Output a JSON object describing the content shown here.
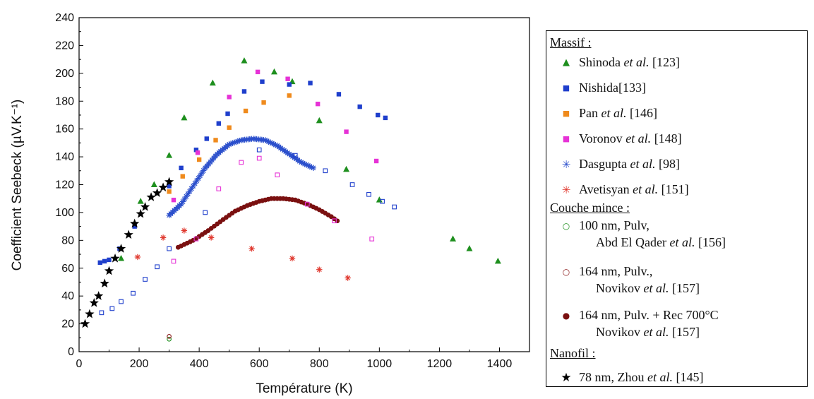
{
  "chart_data": {
    "type": "scatter",
    "xlabel": "Température (K)",
    "ylabel": "Coefficient Seebeck (µV.K⁻¹)",
    "xlim": [
      0,
      1500
    ],
    "ylim": [
      0,
      240
    ],
    "xticks": [
      0,
      200,
      400,
      600,
      800,
      1000,
      1200,
      1400
    ],
    "yticks": [
      0,
      20,
      40,
      60,
      80,
      100,
      120,
      140,
      160,
      180,
      200,
      220,
      240
    ],
    "grid": false,
    "legend_position": "right",
    "series": [
      {
        "name": "Shinoda et al. [123]",
        "marker": "triangle",
        "color": "#1e8f1e",
        "x": [
          140,
          205,
          250,
          300,
          350,
          445,
          550,
          650,
          710,
          800,
          890,
          1000,
          1245,
          1300,
          1395
        ],
        "y": [
          67,
          108,
          120,
          141,
          168,
          193,
          209,
          201,
          194,
          166,
          131,
          109,
          81,
          74,
          65
        ]
      },
      {
        "name": "Nishida[133]",
        "marker": "square",
        "color": "#1f3fcc",
        "x": [
          70,
          85,
          100,
          135,
          185,
          300,
          340,
          390,
          425,
          465,
          495,
          550,
          610,
          700,
          770,
          865,
          935,
          995,
          1020
        ],
        "y": [
          64,
          65,
          66,
          74,
          90,
          119,
          132,
          145,
          153,
          164,
          171,
          187,
          194,
          192,
          193,
          185,
          176,
          170,
          168
        ]
      },
      {
        "name": "Pan et al. [146]",
        "marker": "square",
        "color": "#ef8a1c",
        "x": [
          300,
          345,
          400,
          455,
          500,
          555,
          615,
          700
        ],
        "y": [
          115,
          126,
          138,
          152,
          161,
          173,
          179,
          184
        ]
      },
      {
        "name": "Voronov et al. [148]",
        "marker": "square",
        "color": "#e632d6",
        "x": [
          315,
          395,
          500,
          595,
          695,
          795,
          890,
          990
        ],
        "y": [
          109,
          143,
          183,
          201,
          196,
          178,
          158,
          137
        ]
      },
      {
        "name": "Dasgupta et al. [98]",
        "marker": "asterisk",
        "color": "#2b4fcc",
        "curve": true,
        "x": [
          300,
          340,
          380,
          420,
          460,
          500,
          540,
          580,
          620,
          660,
          700,
          740,
          780
        ],
        "y": [
          98,
          106,
          119,
          132,
          142,
          149,
          152,
          153,
          152,
          148,
          142,
          136,
          132
        ]
      },
      {
        "name": "Avetisyan et al. [151]",
        "marker": "asterisk",
        "color": "#e0382e",
        "x": [
          195,
          280,
          350,
          440,
          575,
          710,
          800,
          895
        ],
        "y": [
          68,
          82,
          87,
          82,
          74,
          67,
          59,
          53
        ]
      },
      {
        "name": "100 nm, Pulv, Abd El Qader et al. [156]",
        "marker": "circle-open",
        "color": "#1e8f1e",
        "x": [
          300
        ],
        "y": [
          9
        ]
      },
      {
        "name": "164 nm, Pulv., Novikov et al. [157]",
        "marker": "circle-open",
        "color": "#8b1a1a",
        "x": [
          300
        ],
        "y": [
          11
        ]
      },
      {
        "name": "164 nm, Pulv. + Rec 700°C Novikov et al. [157]",
        "marker": "circle-filled",
        "color": "#7a1010",
        "curve": true,
        "x": [
          330,
          380,
          430,
          480,
          520,
          560,
          600,
          640,
          680,
          720,
          760,
          800,
          840,
          860
        ],
        "y": [
          75,
          80,
          87,
          95,
          101,
          105,
          108,
          110,
          110,
          109,
          106,
          102,
          97,
          94
        ]
      },
      {
        "name": "78 nm, Zhou et al. [145]",
        "marker": "star",
        "color": "#000000",
        "x": [
          20,
          35,
          50,
          65,
          85,
          100,
          120,
          140,
          165,
          185,
          205,
          220,
          240,
          260,
          280,
          300
        ],
        "y": [
          20,
          27,
          35,
          40,
          49,
          58,
          67,
          74,
          84,
          92,
          99,
          104,
          111,
          114,
          118,
          122
        ]
      },
      {
        "name": "open squares (blue)",
        "marker": "square-open",
        "color": "#1f3fcc",
        "x": [
          75,
          110,
          140,
          180,
          220,
          260,
          300
        ],
        "y": [
          28,
          31,
          36,
          42,
          52,
          61,
          74
        ]
      },
      {
        "name": "open squares (blue, high T)",
        "marker": "square-open",
        "color": "#1f3fcc",
        "x": [
          420,
          600,
          720,
          820,
          910,
          965,
          1010,
          1050
        ],
        "y": [
          100,
          145,
          141,
          130,
          120,
          113,
          108,
          104
        ]
      },
      {
        "name": "open squares (magenta)",
        "marker": "square-open",
        "color": "#e632d6",
        "x": [
          315,
          390,
          465,
          540,
          600,
          660,
          760,
          850,
          975
        ],
        "y": [
          65,
          81,
          117,
          136,
          139,
          127,
          106,
          94,
          81
        ]
      }
    ]
  },
  "legend": {
    "massif_title": "Massif :",
    "couche_title": "Couche mince :",
    "nanofil_title": "Nanofil :",
    "entries": {
      "shinoda": {
        "name": "Shinoda",
        "etal": "et al.",
        "ref": " [123]"
      },
      "nishida": {
        "name": "Nishida[133]"
      },
      "pan": {
        "name": "Pan",
        "etal": "et al.",
        "ref": " [146]"
      },
      "voronov": {
        "name": "Voronov",
        "etal": "et al.",
        "ref": " [148]"
      },
      "dasgupta": {
        "name": "Dasgupta",
        "etal": "et al.",
        "ref": " [98]"
      },
      "avetisyan": {
        "name": "Avetisyan",
        "etal": "et al.",
        "ref": " [151]"
      },
      "c100": {
        "line1": "100 nm, Pulv,",
        "name2": "Abd El Qader",
        "etal": "et al.",
        "ref": "  [156]"
      },
      "c164": {
        "line1": "164 nm, Pulv.,",
        "name2": "Novikov",
        "etal": "et al.",
        "ref": " [157]"
      },
      "c164rec": {
        "line1": "164 nm, Pulv. + Rec 700°C",
        "name2": "Novikov",
        "etal": "et al.",
        "ref": "  [157]"
      },
      "zhou": {
        "line1": "78 nm, Zhou",
        "etal": "et al.",
        "ref": "  [145]"
      }
    },
    "symbols": {
      "triangle": "▲",
      "square": "■",
      "asterisk": "✳",
      "circle_open": "○",
      "circle_filled": "●",
      "star": "★"
    }
  }
}
